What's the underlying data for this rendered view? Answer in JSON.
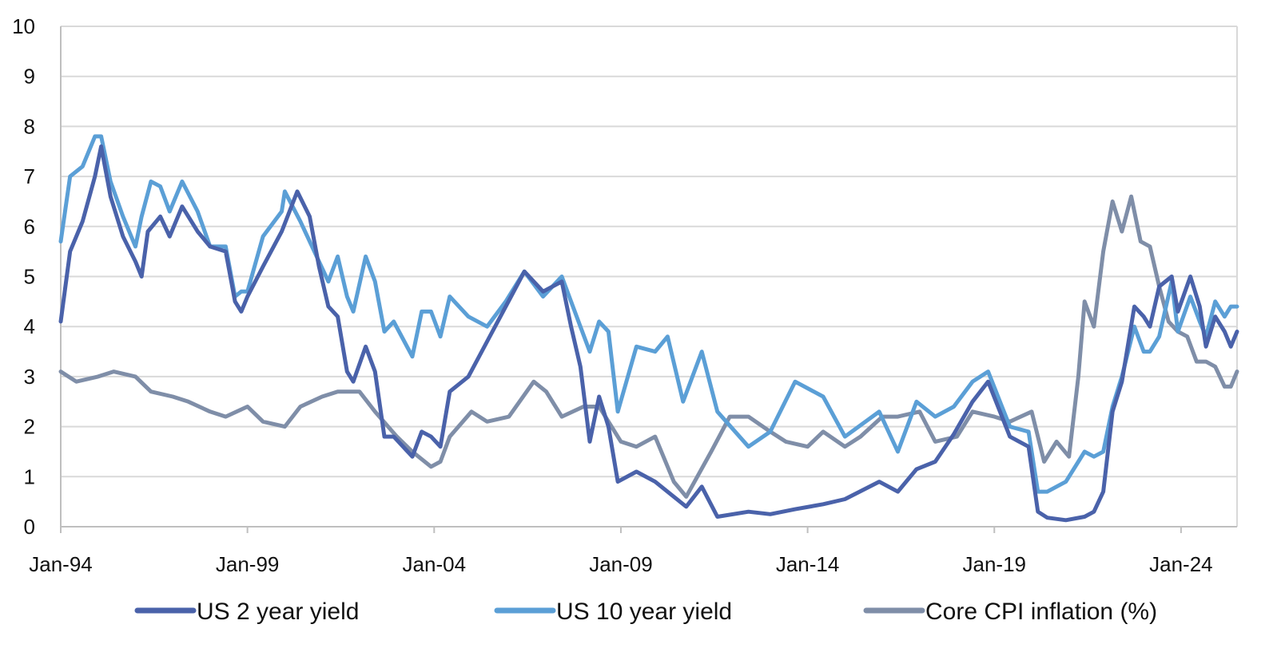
{
  "chart_data": {
    "type": "line",
    "title": "",
    "xlabel": "",
    "ylabel": "",
    "ylim": [
      0,
      10
    ],
    "yticks": [
      0,
      1,
      2,
      3,
      4,
      5,
      6,
      7,
      8,
      9,
      10
    ],
    "xlim": [
      "1994-01",
      "2025-07"
    ],
    "xtick_labels": [
      {
        "date": "1994-01",
        "label": "Jan-94"
      },
      {
        "date": "1999-01",
        "label": "Jan-99"
      },
      {
        "date": "2004-01",
        "label": "Jan-04"
      },
      {
        "date": "2009-01",
        "label": "Jan-09"
      },
      {
        "date": "2014-01",
        "label": "Jan-14"
      },
      {
        "date": "2019-01",
        "label": "Jan-19"
      },
      {
        "date": "2024-01",
        "label": "Jan-24"
      }
    ],
    "grid": "horizontal",
    "legend_position": "bottom",
    "series": [
      {
        "name": "US 2 year yield",
        "color": "#4a62aa",
        "points": [
          [
            "1994-01",
            4.1
          ],
          [
            "1994-04",
            5.5
          ],
          [
            "1994-08",
            6.1
          ],
          [
            "1994-12",
            7.0
          ],
          [
            "1995-02",
            7.6
          ],
          [
            "1995-05",
            6.6
          ],
          [
            "1995-09",
            5.8
          ],
          [
            "1996-01",
            5.3
          ],
          [
            "1996-03",
            5.0
          ],
          [
            "1996-05",
            5.9
          ],
          [
            "1996-09",
            6.2
          ],
          [
            "1996-12",
            5.8
          ],
          [
            "1997-04",
            6.4
          ],
          [
            "1997-09",
            5.9
          ],
          [
            "1998-01",
            5.6
          ],
          [
            "1998-06",
            5.5
          ],
          [
            "1998-09",
            4.5
          ],
          [
            "1998-11",
            4.3
          ],
          [
            "1999-01",
            4.6
          ],
          [
            "1999-06",
            5.2
          ],
          [
            "1999-12",
            5.9
          ],
          [
            "2000-05",
            6.7
          ],
          [
            "2000-09",
            6.2
          ],
          [
            "2000-12",
            5.2
          ],
          [
            "2001-03",
            4.4
          ],
          [
            "2001-06",
            4.2
          ],
          [
            "2001-09",
            3.1
          ],
          [
            "2001-11",
            2.9
          ],
          [
            "2002-03",
            3.6
          ],
          [
            "2002-06",
            3.1
          ],
          [
            "2002-09",
            1.8
          ],
          [
            "2002-12",
            1.8
          ],
          [
            "2003-06",
            1.4
          ],
          [
            "2003-09",
            1.9
          ],
          [
            "2003-12",
            1.8
          ],
          [
            "2004-03",
            1.6
          ],
          [
            "2004-06",
            2.7
          ],
          [
            "2004-12",
            3.0
          ],
          [
            "2005-06",
            3.7
          ],
          [
            "2005-12",
            4.4
          ],
          [
            "2006-06",
            5.1
          ],
          [
            "2006-12",
            4.7
          ],
          [
            "2007-06",
            4.9
          ],
          [
            "2007-09",
            4.0
          ],
          [
            "2007-12",
            3.2
          ],
          [
            "2008-03",
            1.7
          ],
          [
            "2008-06",
            2.6
          ],
          [
            "2008-09",
            2.0
          ],
          [
            "2008-12",
            0.9
          ],
          [
            "2009-06",
            1.1
          ],
          [
            "2009-12",
            0.9
          ],
          [
            "2010-06",
            0.6
          ],
          [
            "2010-10",
            0.4
          ],
          [
            "2011-03",
            0.8
          ],
          [
            "2011-08",
            0.2
          ],
          [
            "2012-06",
            0.3
          ],
          [
            "2013-01",
            0.25
          ],
          [
            "2013-09",
            0.35
          ],
          [
            "2014-06",
            0.45
          ],
          [
            "2015-01",
            0.55
          ],
          [
            "2015-12",
            0.9
          ],
          [
            "2016-06",
            0.7
          ],
          [
            "2016-12",
            1.15
          ],
          [
            "2017-06",
            1.3
          ],
          [
            "2017-12",
            1.85
          ],
          [
            "2018-06",
            2.5
          ],
          [
            "2018-11",
            2.9
          ],
          [
            "2019-06",
            1.8
          ],
          [
            "2019-12",
            1.6
          ],
          [
            "2020-03",
            0.3
          ],
          [
            "2020-06",
            0.18
          ],
          [
            "2020-12",
            0.13
          ],
          [
            "2021-06",
            0.2
          ],
          [
            "2021-09",
            0.3
          ],
          [
            "2021-12",
            0.7
          ],
          [
            "2022-03",
            2.3
          ],
          [
            "2022-06",
            2.9
          ],
          [
            "2022-10",
            4.4
          ],
          [
            "2023-01",
            4.2
          ],
          [
            "2023-03",
            4.0
          ],
          [
            "2023-06",
            4.8
          ],
          [
            "2023-10",
            5.0
          ],
          [
            "2023-12",
            4.3
          ],
          [
            "2024-04",
            5.0
          ],
          [
            "2024-07",
            4.4
          ],
          [
            "2024-09",
            3.6
          ],
          [
            "2024-12",
            4.2
          ],
          [
            "2025-03",
            3.9
          ],
          [
            "2025-05",
            3.6
          ],
          [
            "2025-07",
            3.9
          ]
        ]
      },
      {
        "name": "US 10 year yield",
        "color": "#5b9fd6",
        "points": [
          [
            "1994-01",
            5.7
          ],
          [
            "1994-04",
            7.0
          ],
          [
            "1994-08",
            7.2
          ],
          [
            "1994-12",
            7.8
          ],
          [
            "1995-02",
            7.8
          ],
          [
            "1995-05",
            6.9
          ],
          [
            "1995-09",
            6.2
          ],
          [
            "1996-01",
            5.6
          ],
          [
            "1996-03",
            6.2
          ],
          [
            "1996-06",
            6.9
          ],
          [
            "1996-09",
            6.8
          ],
          [
            "1996-12",
            6.3
          ],
          [
            "1997-04",
            6.9
          ],
          [
            "1997-09",
            6.3
          ],
          [
            "1998-01",
            5.6
          ],
          [
            "1998-06",
            5.6
          ],
          [
            "1998-09",
            4.6
          ],
          [
            "1998-11",
            4.7
          ],
          [
            "1999-01",
            4.7
          ],
          [
            "1999-06",
            5.8
          ],
          [
            "1999-12",
            6.3
          ],
          [
            "2000-01",
            6.7
          ],
          [
            "2000-06",
            6.1
          ],
          [
            "2000-12",
            5.3
          ],
          [
            "2001-03",
            4.9
          ],
          [
            "2001-06",
            5.4
          ],
          [
            "2001-09",
            4.6
          ],
          [
            "2001-11",
            4.3
          ],
          [
            "2002-03",
            5.4
          ],
          [
            "2002-06",
            4.9
          ],
          [
            "2002-09",
            3.9
          ],
          [
            "2002-12",
            4.1
          ],
          [
            "2003-06",
            3.4
          ],
          [
            "2003-09",
            4.3
          ],
          [
            "2003-12",
            4.3
          ],
          [
            "2004-03",
            3.8
          ],
          [
            "2004-06",
            4.6
          ],
          [
            "2004-12",
            4.2
          ],
          [
            "2005-06",
            4.0
          ],
          [
            "2005-12",
            4.5
          ],
          [
            "2006-06",
            5.1
          ],
          [
            "2006-12",
            4.6
          ],
          [
            "2007-06",
            5.0
          ],
          [
            "2007-09",
            4.5
          ],
          [
            "2007-12",
            4.0
          ],
          [
            "2008-03",
            3.5
          ],
          [
            "2008-06",
            4.1
          ],
          [
            "2008-09",
            3.9
          ],
          [
            "2008-12",
            2.3
          ],
          [
            "2009-06",
            3.6
          ],
          [
            "2009-12",
            3.5
          ],
          [
            "2010-04",
            3.8
          ],
          [
            "2010-09",
            2.5
          ],
          [
            "2011-03",
            3.5
          ],
          [
            "2011-08",
            2.3
          ],
          [
            "2012-06",
            1.6
          ],
          [
            "2013-01",
            1.9
          ],
          [
            "2013-09",
            2.9
          ],
          [
            "2014-06",
            2.6
          ],
          [
            "2015-01",
            1.8
          ],
          [
            "2015-12",
            2.3
          ],
          [
            "2016-06",
            1.5
          ],
          [
            "2016-12",
            2.5
          ],
          [
            "2017-06",
            2.2
          ],
          [
            "2017-12",
            2.4
          ],
          [
            "2018-06",
            2.9
          ],
          [
            "2018-11",
            3.1
          ],
          [
            "2019-06",
            2.0
          ],
          [
            "2019-12",
            1.9
          ],
          [
            "2020-03",
            0.7
          ],
          [
            "2020-06",
            0.7
          ],
          [
            "2020-12",
            0.9
          ],
          [
            "2021-06",
            1.5
          ],
          [
            "2021-09",
            1.4
          ],
          [
            "2021-12",
            1.5
          ],
          [
            "2022-03",
            2.4
          ],
          [
            "2022-06",
            3.0
          ],
          [
            "2022-10",
            4.0
          ],
          [
            "2023-01",
            3.5
          ],
          [
            "2023-03",
            3.5
          ],
          [
            "2023-06",
            3.8
          ],
          [
            "2023-10",
            4.9
          ],
          [
            "2023-12",
            3.9
          ],
          [
            "2024-04",
            4.6
          ],
          [
            "2024-07",
            4.1
          ],
          [
            "2024-09",
            3.8
          ],
          [
            "2024-12",
            4.5
          ],
          [
            "2025-03",
            4.2
          ],
          [
            "2025-05",
            4.4
          ],
          [
            "2025-07",
            4.4
          ]
        ]
      },
      {
        "name": "Core CPI inflation (%)",
        "color": "#7f8ea8",
        "points": [
          [
            "1994-01",
            3.1
          ],
          [
            "1994-06",
            2.9
          ],
          [
            "1995-01",
            3.0
          ],
          [
            "1995-06",
            3.1
          ],
          [
            "1996-01",
            3.0
          ],
          [
            "1996-06",
            2.7
          ],
          [
            "1997-01",
            2.6
          ],
          [
            "1997-06",
            2.5
          ],
          [
            "1998-01",
            2.3
          ],
          [
            "1998-06",
            2.2
          ],
          [
            "1999-01",
            2.4
          ],
          [
            "1999-06",
            2.1
          ],
          [
            "2000-01",
            2.0
          ],
          [
            "2000-06",
            2.4
          ],
          [
            "2001-01",
            2.6
          ],
          [
            "2001-06",
            2.7
          ],
          [
            "2002-01",
            2.7
          ],
          [
            "2002-06",
            2.3
          ],
          [
            "2003-01",
            1.8
          ],
          [
            "2003-06",
            1.5
          ],
          [
            "2003-12",
            1.2
          ],
          [
            "2004-03",
            1.3
          ],
          [
            "2004-06",
            1.8
          ],
          [
            "2005-01",
            2.3
          ],
          [
            "2005-06",
            2.1
          ],
          [
            "2006-01",
            2.2
          ],
          [
            "2006-09",
            2.9
          ],
          [
            "2007-01",
            2.7
          ],
          [
            "2007-06",
            2.2
          ],
          [
            "2008-01",
            2.4
          ],
          [
            "2008-06",
            2.4
          ],
          [
            "2009-01",
            1.7
          ],
          [
            "2009-06",
            1.6
          ],
          [
            "2009-12",
            1.8
          ],
          [
            "2010-06",
            0.9
          ],
          [
            "2010-10",
            0.6
          ],
          [
            "2011-06",
            1.5
          ],
          [
            "2011-12",
            2.2
          ],
          [
            "2012-06",
            2.2
          ],
          [
            "2013-01",
            1.9
          ],
          [
            "2013-06",
            1.7
          ],
          [
            "2014-01",
            1.6
          ],
          [
            "2014-06",
            1.9
          ],
          [
            "2015-01",
            1.6
          ],
          [
            "2015-06",
            1.8
          ],
          [
            "2016-01",
            2.2
          ],
          [
            "2016-06",
            2.2
          ],
          [
            "2017-01",
            2.3
          ],
          [
            "2017-06",
            1.7
          ],
          [
            "2018-01",
            1.8
          ],
          [
            "2018-06",
            2.3
          ],
          [
            "2019-01",
            2.2
          ],
          [
            "2019-06",
            2.1
          ],
          [
            "2020-01",
            2.3
          ],
          [
            "2020-05",
            1.3
          ],
          [
            "2020-09",
            1.7
          ],
          [
            "2021-01",
            1.4
          ],
          [
            "2021-04",
            3.0
          ],
          [
            "2021-06",
            4.5
          ],
          [
            "2021-09",
            4.0
          ],
          [
            "2021-12",
            5.5
          ],
          [
            "2022-03",
            6.5
          ],
          [
            "2022-06",
            5.9
          ],
          [
            "2022-09",
            6.6
          ],
          [
            "2022-12",
            5.7
          ],
          [
            "2023-03",
            5.6
          ],
          [
            "2023-06",
            4.8
          ],
          [
            "2023-09",
            4.1
          ],
          [
            "2023-12",
            3.9
          ],
          [
            "2024-03",
            3.8
          ],
          [
            "2024-06",
            3.3
          ],
          [
            "2024-09",
            3.3
          ],
          [
            "2024-12",
            3.2
          ],
          [
            "2025-03",
            2.8
          ],
          [
            "2025-05",
            2.8
          ],
          [
            "2025-07",
            3.1
          ]
        ]
      }
    ]
  }
}
